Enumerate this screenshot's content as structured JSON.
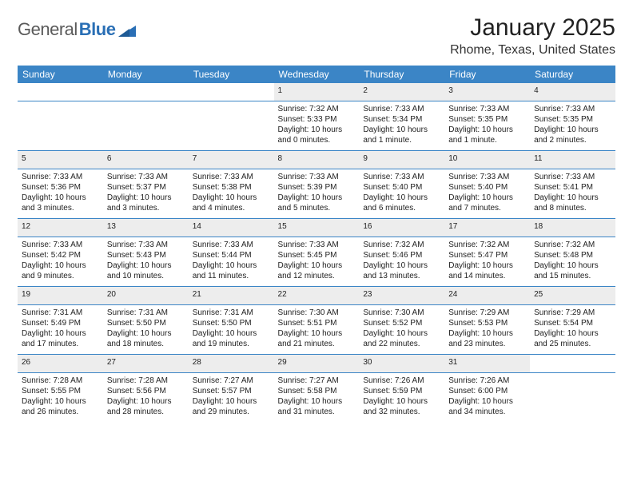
{
  "logo": {
    "general": "General",
    "blue": "Blue"
  },
  "title": {
    "month": "January 2025",
    "location": "Rhome, Texas, United States"
  },
  "header_bg": "#3b85c6",
  "header_fg": "#ffffff",
  "daynum_bg": "#ededed",
  "days": [
    "Sunday",
    "Monday",
    "Tuesday",
    "Wednesday",
    "Thursday",
    "Friday",
    "Saturday"
  ],
  "weeks": [
    {
      "nums": [
        "",
        "",
        "",
        "1",
        "2",
        "3",
        "4"
      ],
      "cells": [
        {
          "empty": true
        },
        {
          "empty": true
        },
        {
          "empty": true
        },
        {
          "sunrise": "Sunrise: 7:32 AM",
          "sunset": "Sunset: 5:33 PM",
          "day1": "Daylight: 10 hours",
          "day2": "and 0 minutes."
        },
        {
          "sunrise": "Sunrise: 7:33 AM",
          "sunset": "Sunset: 5:34 PM",
          "day1": "Daylight: 10 hours",
          "day2": "and 1 minute."
        },
        {
          "sunrise": "Sunrise: 7:33 AM",
          "sunset": "Sunset: 5:35 PM",
          "day1": "Daylight: 10 hours",
          "day2": "and 1 minute."
        },
        {
          "sunrise": "Sunrise: 7:33 AM",
          "sunset": "Sunset: 5:35 PM",
          "day1": "Daylight: 10 hours",
          "day2": "and 2 minutes."
        }
      ]
    },
    {
      "nums": [
        "5",
        "6",
        "7",
        "8",
        "9",
        "10",
        "11"
      ],
      "cells": [
        {
          "sunrise": "Sunrise: 7:33 AM",
          "sunset": "Sunset: 5:36 PM",
          "day1": "Daylight: 10 hours",
          "day2": "and 3 minutes."
        },
        {
          "sunrise": "Sunrise: 7:33 AM",
          "sunset": "Sunset: 5:37 PM",
          "day1": "Daylight: 10 hours",
          "day2": "and 3 minutes."
        },
        {
          "sunrise": "Sunrise: 7:33 AM",
          "sunset": "Sunset: 5:38 PM",
          "day1": "Daylight: 10 hours",
          "day2": "and 4 minutes."
        },
        {
          "sunrise": "Sunrise: 7:33 AM",
          "sunset": "Sunset: 5:39 PM",
          "day1": "Daylight: 10 hours",
          "day2": "and 5 minutes."
        },
        {
          "sunrise": "Sunrise: 7:33 AM",
          "sunset": "Sunset: 5:40 PM",
          "day1": "Daylight: 10 hours",
          "day2": "and 6 minutes."
        },
        {
          "sunrise": "Sunrise: 7:33 AM",
          "sunset": "Sunset: 5:40 PM",
          "day1": "Daylight: 10 hours",
          "day2": "and 7 minutes."
        },
        {
          "sunrise": "Sunrise: 7:33 AM",
          "sunset": "Sunset: 5:41 PM",
          "day1": "Daylight: 10 hours",
          "day2": "and 8 minutes."
        }
      ]
    },
    {
      "nums": [
        "12",
        "13",
        "14",
        "15",
        "16",
        "17",
        "18"
      ],
      "cells": [
        {
          "sunrise": "Sunrise: 7:33 AM",
          "sunset": "Sunset: 5:42 PM",
          "day1": "Daylight: 10 hours",
          "day2": "and 9 minutes."
        },
        {
          "sunrise": "Sunrise: 7:33 AM",
          "sunset": "Sunset: 5:43 PM",
          "day1": "Daylight: 10 hours",
          "day2": "and 10 minutes."
        },
        {
          "sunrise": "Sunrise: 7:33 AM",
          "sunset": "Sunset: 5:44 PM",
          "day1": "Daylight: 10 hours",
          "day2": "and 11 minutes."
        },
        {
          "sunrise": "Sunrise: 7:33 AM",
          "sunset": "Sunset: 5:45 PM",
          "day1": "Daylight: 10 hours",
          "day2": "and 12 minutes."
        },
        {
          "sunrise": "Sunrise: 7:32 AM",
          "sunset": "Sunset: 5:46 PM",
          "day1": "Daylight: 10 hours",
          "day2": "and 13 minutes."
        },
        {
          "sunrise": "Sunrise: 7:32 AM",
          "sunset": "Sunset: 5:47 PM",
          "day1": "Daylight: 10 hours",
          "day2": "and 14 minutes."
        },
        {
          "sunrise": "Sunrise: 7:32 AM",
          "sunset": "Sunset: 5:48 PM",
          "day1": "Daylight: 10 hours",
          "day2": "and 15 minutes."
        }
      ]
    },
    {
      "nums": [
        "19",
        "20",
        "21",
        "22",
        "23",
        "24",
        "25"
      ],
      "cells": [
        {
          "sunrise": "Sunrise: 7:31 AM",
          "sunset": "Sunset: 5:49 PM",
          "day1": "Daylight: 10 hours",
          "day2": "and 17 minutes."
        },
        {
          "sunrise": "Sunrise: 7:31 AM",
          "sunset": "Sunset: 5:50 PM",
          "day1": "Daylight: 10 hours",
          "day2": "and 18 minutes."
        },
        {
          "sunrise": "Sunrise: 7:31 AM",
          "sunset": "Sunset: 5:50 PM",
          "day1": "Daylight: 10 hours",
          "day2": "and 19 minutes."
        },
        {
          "sunrise": "Sunrise: 7:30 AM",
          "sunset": "Sunset: 5:51 PM",
          "day1": "Daylight: 10 hours",
          "day2": "and 21 minutes."
        },
        {
          "sunrise": "Sunrise: 7:30 AM",
          "sunset": "Sunset: 5:52 PM",
          "day1": "Daylight: 10 hours",
          "day2": "and 22 minutes."
        },
        {
          "sunrise": "Sunrise: 7:29 AM",
          "sunset": "Sunset: 5:53 PM",
          "day1": "Daylight: 10 hours",
          "day2": "and 23 minutes."
        },
        {
          "sunrise": "Sunrise: 7:29 AM",
          "sunset": "Sunset: 5:54 PM",
          "day1": "Daylight: 10 hours",
          "day2": "and 25 minutes."
        }
      ]
    },
    {
      "nums": [
        "26",
        "27",
        "28",
        "29",
        "30",
        "31",
        ""
      ],
      "cells": [
        {
          "sunrise": "Sunrise: 7:28 AM",
          "sunset": "Sunset: 5:55 PM",
          "day1": "Daylight: 10 hours",
          "day2": "and 26 minutes."
        },
        {
          "sunrise": "Sunrise: 7:28 AM",
          "sunset": "Sunset: 5:56 PM",
          "day1": "Daylight: 10 hours",
          "day2": "and 28 minutes."
        },
        {
          "sunrise": "Sunrise: 7:27 AM",
          "sunset": "Sunset: 5:57 PM",
          "day1": "Daylight: 10 hours",
          "day2": "and 29 minutes."
        },
        {
          "sunrise": "Sunrise: 7:27 AM",
          "sunset": "Sunset: 5:58 PM",
          "day1": "Daylight: 10 hours",
          "day2": "and 31 minutes."
        },
        {
          "sunrise": "Sunrise: 7:26 AM",
          "sunset": "Sunset: 5:59 PM",
          "day1": "Daylight: 10 hours",
          "day2": "and 32 minutes."
        },
        {
          "sunrise": "Sunrise: 7:26 AM",
          "sunset": "Sunset: 6:00 PM",
          "day1": "Daylight: 10 hours",
          "day2": "and 34 minutes."
        },
        {
          "empty": true
        }
      ]
    }
  ]
}
